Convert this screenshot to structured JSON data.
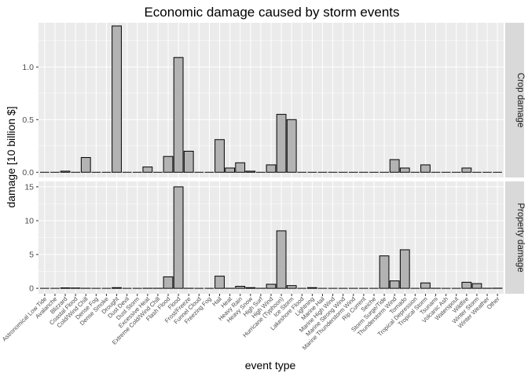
{
  "chart_data": {
    "type": "bar",
    "title": "Economic damage caused by storm events",
    "xlabel": "event type",
    "ylabel": "damage [10 billion $]",
    "grid": true,
    "colors": {
      "panel": "#ebebeb",
      "grid": "#ffffff",
      "bar_fill": "#b3b3b3",
      "bar_stroke": "#000000",
      "strip": "#d9d9d9"
    },
    "categories": [
      "Astronomical Low Tide",
      "Avalanche",
      "Blizzard",
      "Coastal Flood",
      "Cold/Wind Chill",
      "Dense Fog",
      "Dense Smoke",
      "Drought",
      "Dust Devil",
      "Dust Storm",
      "Excessive Heat",
      "Extreme Cold/Wind Chill",
      "Flash Flood",
      "Flood",
      "Frost/Freeze",
      "Funnel Cloud",
      "Freezing Fog",
      "Hail",
      "Heat",
      "Heavy Rain",
      "Heavy Snow",
      "High Surf",
      "High Wind",
      "Hurricane (Typhoon)",
      "Ice Storm",
      "Lakeshore Flood",
      "Lightning",
      "Marine Hail",
      "Marine High Wind",
      "Marine Strong Wind",
      "Marine Thunderstorm Wind",
      "Rip Current",
      "Seiche",
      "Storm Surge/Tide",
      "Thunderstorm Wind",
      "Tornado",
      "Tropical Depression",
      "Tropical Storm",
      "Tsunami",
      "Volcanic Ash",
      "Waterspout",
      "Wildfire",
      "Winter Storm",
      "Winter Weather",
      "Other"
    ],
    "panels": [
      {
        "name": "Crop damage",
        "ylim": [
          -0.05,
          1.42
        ],
        "yticks": [
          0.0,
          0.5,
          1.0
        ],
        "ytick_labels": [
          "0.0",
          "0.5",
          "1.0"
        ],
        "values": [
          0,
          0,
          0.01,
          0,
          0.14,
          0,
          0,
          1.39,
          0,
          0,
          0.05,
          0,
          0.15,
          1.09,
          0.2,
          0,
          0,
          0.31,
          0.04,
          0.09,
          0.01,
          0,
          0.07,
          0.55,
          0.5,
          0,
          0,
          0,
          0,
          0,
          0,
          0,
          0,
          0,
          0.12,
          0.04,
          0,
          0.07,
          0,
          0,
          0,
          0.04,
          0,
          0,
          0
        ]
      },
      {
        "name": "Property damage",
        "ylim": [
          -0.8,
          15.8
        ],
        "yticks": [
          0,
          5,
          10,
          15
        ],
        "ytick_labels": [
          "0",
          "5",
          "10",
          "15"
        ],
        "values": [
          0,
          0,
          0.07,
          0.05,
          0.01,
          0,
          0,
          0.1,
          0,
          0,
          0.01,
          0.01,
          1.7,
          15.0,
          0.01,
          0,
          0,
          1.8,
          0.01,
          0.3,
          0.1,
          0.01,
          0.6,
          8.5,
          0.4,
          0,
          0.1,
          0,
          0,
          0,
          0,
          0,
          0,
          4.8,
          1.1,
          5.7,
          0,
          0.8,
          0.01,
          0,
          0,
          0.9,
          0.7,
          0.01,
          0.02
        ]
      }
    ]
  }
}
